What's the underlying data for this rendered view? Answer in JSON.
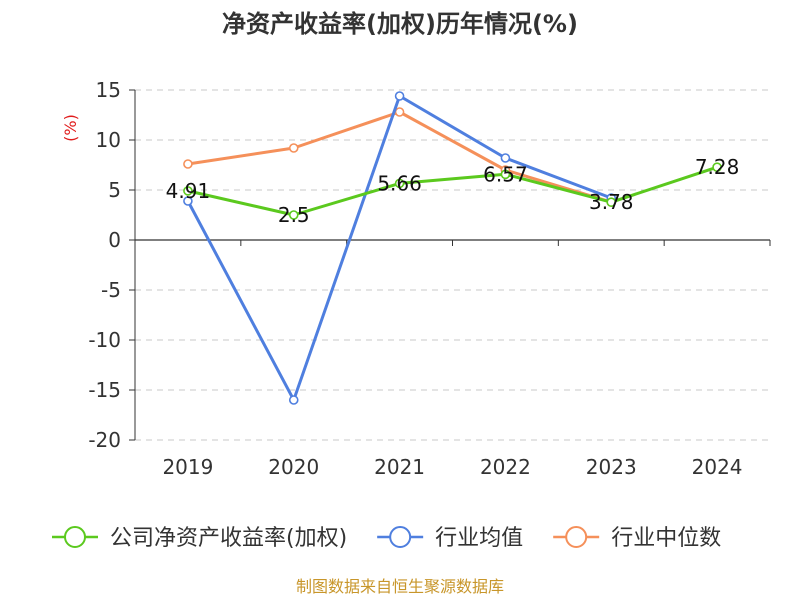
{
  "chart_data": {
    "type": "line",
    "title": "净资产收益率(加权)历年情况(%)",
    "ylabel": "(%)",
    "xlabel": "",
    "categories": [
      "2019",
      "2020",
      "2021",
      "2022",
      "2023",
      "2024"
    ],
    "ylim": [
      -20,
      15
    ],
    "yticks": [
      15,
      10,
      5,
      0,
      -5,
      -10,
      -15,
      -20
    ],
    "grid": true,
    "legend_position": "bottom",
    "series": [
      {
        "name": "公司净资产收益率(加权)",
        "color": "#5bc91e",
        "values": [
          4.91,
          2.5,
          5.66,
          6.57,
          3.78,
          7.28
        ],
        "labels": [
          "4.91",
          "2.5",
          "5.66",
          "6.57",
          "3.78",
          "7.28"
        ]
      },
      {
        "name": "行业均值",
        "color": "#4f7fdf",
        "values": [
          3.9,
          -16.0,
          14.4,
          8.2,
          4.2,
          null
        ]
      },
      {
        "name": "行业中位数",
        "color": "#f5905a",
        "values": [
          7.6,
          9.2,
          12.8,
          7.0,
          3.8,
          null
        ]
      }
    ]
  },
  "source_text": "制图数据来自恒生聚源数据库"
}
